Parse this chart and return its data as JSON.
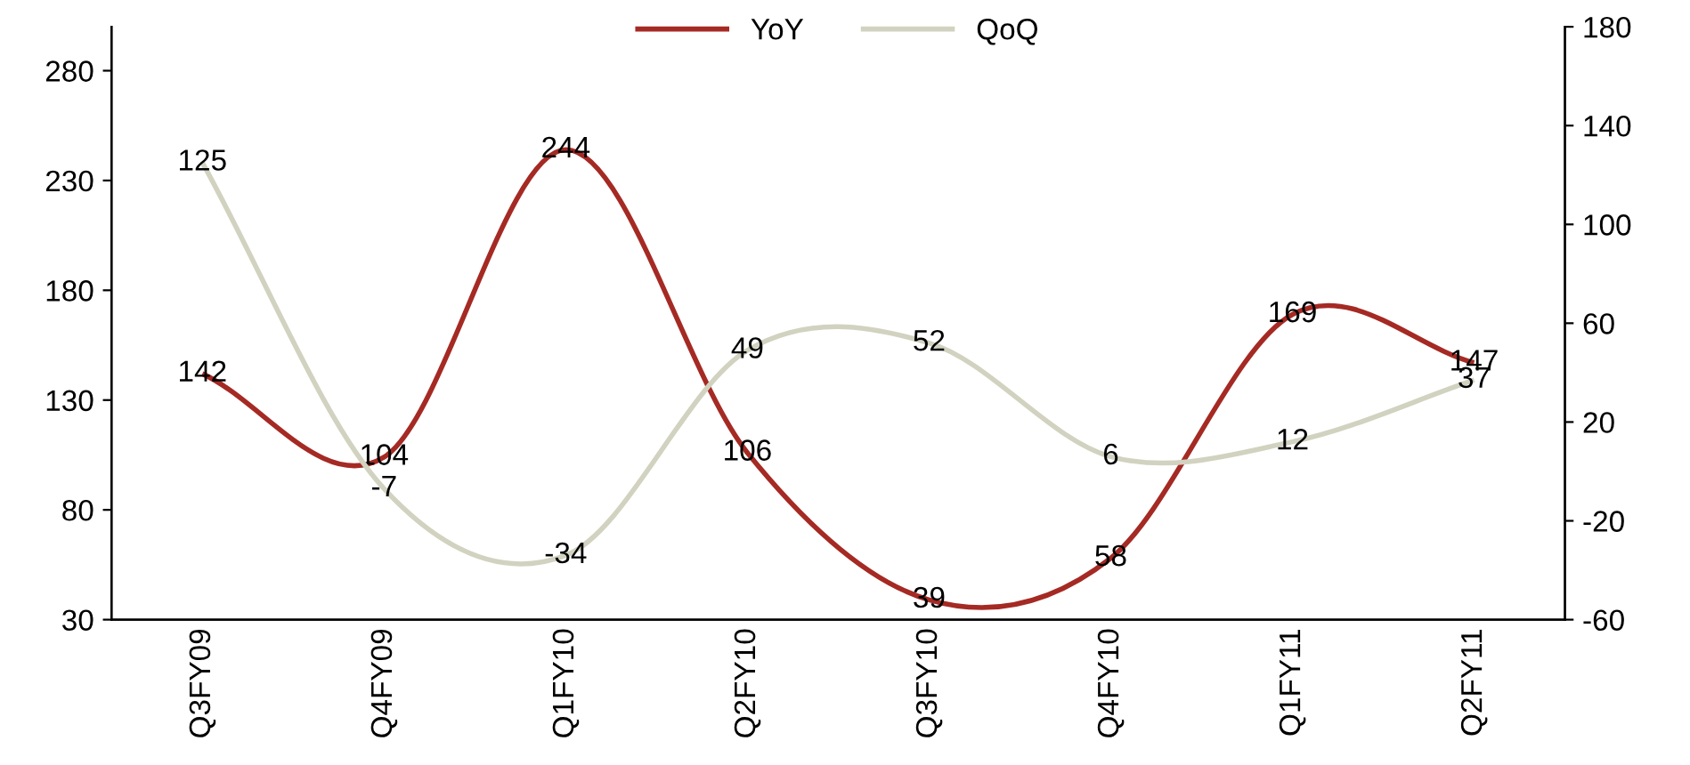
{
  "chart_data": {
    "type": "line",
    "categories": [
      "Q3FY09",
      "Q4FY09",
      "Q1FY10",
      "Q2FY10",
      "Q3FY10",
      "Q4FY10",
      "Q1FY11",
      "Q2FY11"
    ],
    "series": [
      {
        "name": "YoY",
        "color": "#a52a24",
        "values": [
          142,
          104,
          244,
          106,
          39,
          58,
          169,
          147
        ]
      },
      {
        "name": "QoQ",
        "color": "#d2d2c0",
        "axis": "y2",
        "values": [
          125,
          -7,
          -34,
          49,
          52,
          6,
          12,
          37
        ]
      }
    ],
    "ylim": [
      30,
      300
    ],
    "yticks": [
      30,
      80,
      130,
      180,
      230,
      280
    ],
    "y2lim": [
      -60,
      180
    ],
    "y2ticks": [
      -60,
      -20,
      20,
      60,
      100,
      140,
      180
    ],
    "data_labels": true,
    "legend": "top",
    "grid": false,
    "marker": "none",
    "line_style": "solid"
  }
}
